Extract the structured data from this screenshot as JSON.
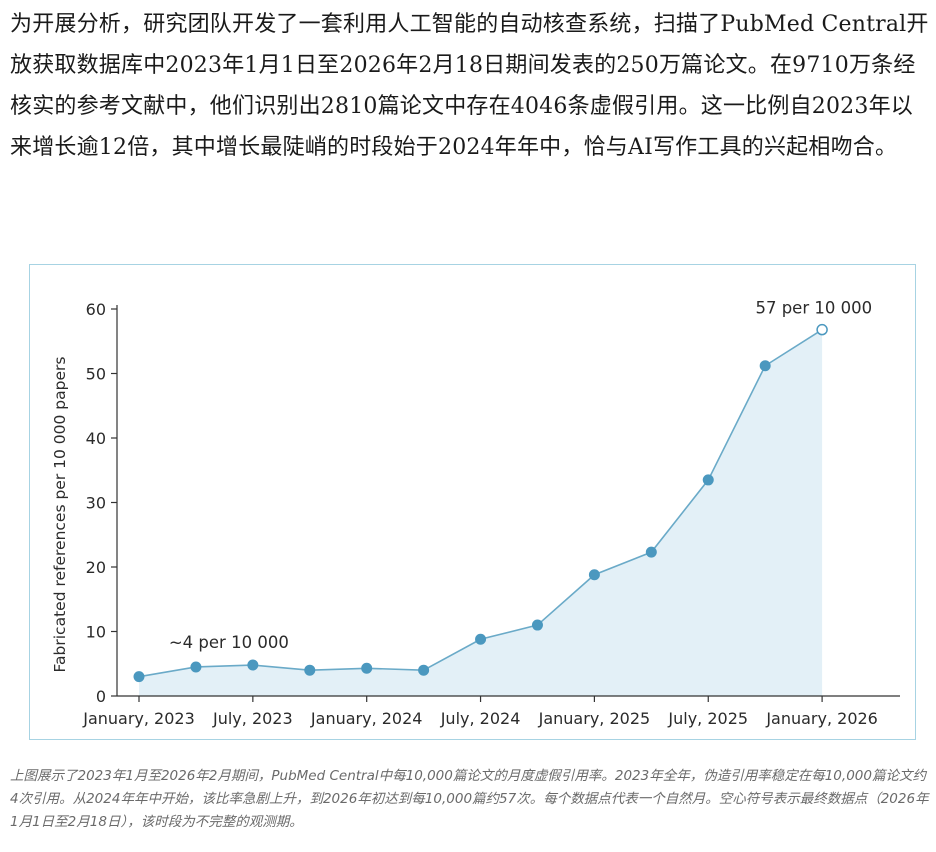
{
  "article": {
    "intro_text": "为开展分析，研究团队开发了一套利用人工智能的自动核查系统，扫描了PubMed Central开放获取数据库中2023年1月1日至2026年2月18日期间发表的250万篇论文。在9710万条经核实的参考文献中，他们识别出2810篇论文中存在4046条虚假引用。这一比例自2023年以来增长逾12倍，其中增长最陡峭的时段始于2024年年中，恰与AI写作工具的兴起相吻合。",
    "caption": "上图展示了2023年1月至2026年2月期间，PubMed Central中每10,000篇论文的月度虚假引用率。2023年全年，伪造引用率稳定在每10,000篇论文约4次引用。从2024年年中开始，该比率急剧上升，到2026年初达到每10,000篇约57次。每个数据点代表一个自然月。空心符号表示最终数据点（2026年1月1日至2月18日），该时段为不完整的观测期。"
  },
  "colors": {
    "line": "#6aaac8",
    "point": "#4b98bf",
    "fill": "#e3f0f7",
    "frame": "#a7d3e3",
    "axis": "#333333"
  },
  "chart_data": {
    "type": "area",
    "title": "",
    "xlabel": "",
    "ylabel": "Fabricated references per 10 000 papers",
    "ylim": [
      0,
      60
    ],
    "yticks": [
      "0",
      "10",
      "20",
      "30",
      "40",
      "50",
      "60"
    ],
    "xticks": [
      {
        "label": "January, 2023",
        "month": 0
      },
      {
        "label": "July, 2023",
        "month": 6
      },
      {
        "label": "January, 2024",
        "month": 12
      },
      {
        "label": "July, 2024",
        "month": 18
      },
      {
        "label": "January, 2025",
        "month": 24
      },
      {
        "label": "July, 2025",
        "month": 30
      },
      {
        "label": "January, 2026",
        "month": 36
      }
    ],
    "x_months_since_jan_2023": [
      0,
      3,
      6,
      9,
      12,
      15,
      18,
      21,
      24,
      27,
      30,
      33,
      36
    ],
    "values": [
      3.0,
      4.5,
      4.8,
      4.0,
      4.3,
      4.0,
      8.8,
      11.0,
      18.8,
      22.3,
      33.5,
      51.2,
      56.8
    ],
    "open_point_index": 12,
    "annotations": [
      {
        "text": "~4 per 10 000",
        "anchor_index": 2
      },
      {
        "text": "57 per 10 000",
        "anchor_index": 12
      }
    ],
    "grid": false,
    "legend": "none"
  }
}
